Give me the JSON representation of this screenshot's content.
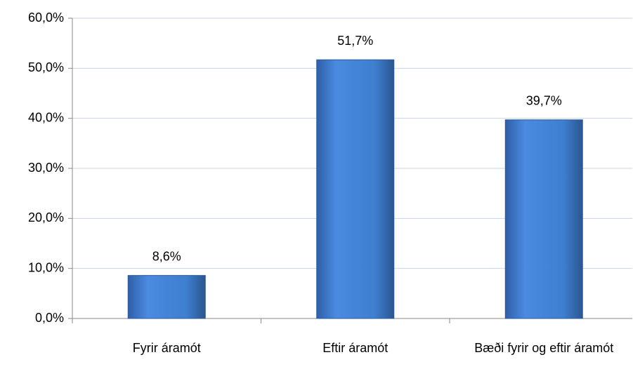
{
  "chart_data": {
    "type": "bar",
    "categories": [
      "Fyrir áramót",
      "Eftir áramót",
      "Bæði fyrir og eftir áramót"
    ],
    "values": [
      8.6,
      51.7,
      39.7
    ],
    "value_labels": [
      "8,6%",
      "51,7%",
      "39,7%"
    ],
    "color": "#3f7fd0",
    "ylim": [
      0,
      60
    ],
    "yticks": [
      {
        "value": 0,
        "label": "0,0%"
      },
      {
        "value": 10,
        "label": "10,0%"
      },
      {
        "value": 20,
        "label": "20,0%"
      },
      {
        "value": 30,
        "label": "30,0%"
      },
      {
        "value": 40,
        "label": "40,0%"
      },
      {
        "value": 50,
        "label": "50,0%"
      },
      {
        "value": 60,
        "label": "60,0%"
      }
    ],
    "grid": true
  }
}
